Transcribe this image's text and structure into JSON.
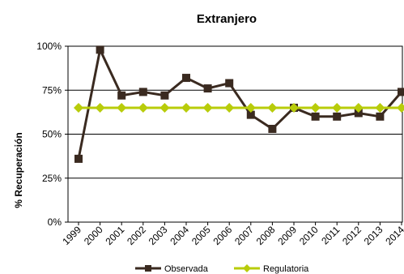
{
  "chart_data": {
    "type": "line",
    "title": "Extranjero",
    "xlabel": "",
    "ylabel": "% Recuperación",
    "categories": [
      "1999",
      "2000",
      "2001",
      "2002",
      "2003",
      "2004",
      "2005",
      "2006",
      "2007",
      "2008",
      "2009",
      "2010",
      "2011",
      "2012",
      "2013",
      "2014"
    ],
    "ylim": [
      0,
      1
    ],
    "yticks": [
      0,
      0.25,
      0.5,
      0.75,
      1.0
    ],
    "ytick_labels": [
      "0%",
      "25%",
      "50%",
      "75%",
      "100%"
    ],
    "grid": "horizontal",
    "legend_position": "bottom",
    "series": [
      {
        "name": "Observada",
        "color": "#3a2a20",
        "marker": "square",
        "values": [
          0.36,
          0.98,
          0.72,
          0.74,
          0.72,
          0.82,
          0.76,
          0.79,
          0.61,
          0.53,
          0.65,
          0.6,
          0.6,
          0.62,
          0.6,
          0.74
        ]
      },
      {
        "name": "Regulatoria",
        "color": "#b8cc0a",
        "marker": "diamond",
        "values": [
          0.65,
          0.65,
          0.65,
          0.65,
          0.65,
          0.65,
          0.65,
          0.65,
          0.65,
          0.65,
          0.65,
          0.65,
          0.65,
          0.65,
          0.65,
          0.65
        ]
      }
    ]
  }
}
